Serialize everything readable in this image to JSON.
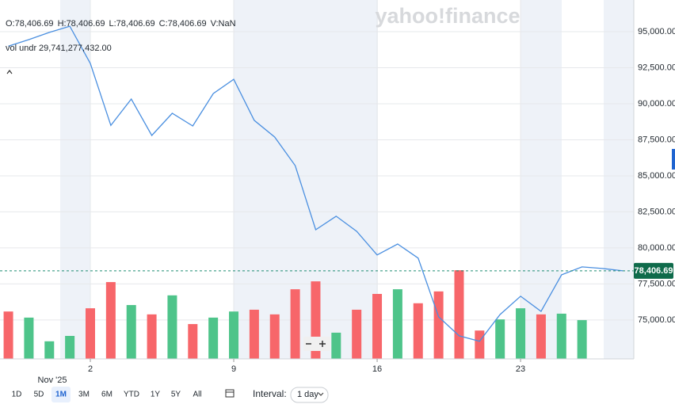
{
  "chart_data": {
    "type": "line",
    "logo": "yahoo!finance",
    "ohlc": [
      "O:78,406.69",
      "H:78,406.69",
      "L:78,406.69",
      "C:78,406.69",
      "V:NaN"
    ],
    "volume_label": "vol undr",
    "volume_value": "29,741,277,432.00",
    "categories": [
      null,
      null,
      null,
      null,
      "2",
      null,
      null,
      null,
      null,
      null,
      null,
      "9",
      null,
      null,
      null,
      null,
      null,
      null,
      "16",
      null,
      null,
      null,
      null,
      null,
      null,
      "23",
      null,
      null,
      null,
      null,
      null
    ],
    "x_period_label": "Nov '25",
    "values": [
      94000,
      94450,
      94950,
      95380,
      92800,
      88500,
      90330,
      87800,
      89340,
      88460,
      90710,
      91700,
      88850,
      87690,
      85710,
      81260,
      82200,
      81150,
      79510,
      80270,
      79290,
      75220,
      73900,
      73520,
      75380,
      76650,
      75600,
      78130,
      78680,
      78570,
      78406.69
    ],
    "color": "#4a8fe0",
    "volume": [
      13.2,
      11.5,
      4.9,
      6.4,
      14.1,
      21.4,
      15,
      12.4,
      17.7,
      9.7,
      11.5,
      13.2,
      13.7,
      12.4,
      19.4,
      21.6,
      7.3,
      13.7,
      18.1,
      19.4,
      15.5,
      18.8,
      24.7,
      7.9,
      11,
      14.1,
      12.4,
      12.6,
      10.8,
      null,
      null
    ],
    "volume_colors": [
      "#f7666a",
      "#4ec48a",
      "#4ec48a",
      "#4ec48a",
      "#f7666a",
      "#f7666a",
      "#4ec48a",
      "#f7666a",
      "#4ec48a",
      "#f7666a",
      "#4ec48a",
      "#4ec48a",
      "#f7666a",
      "#f7666a",
      "#f7666a",
      "#f7666a",
      "#4ec48a",
      "#f7666a",
      "#f7666a",
      "#4ec48a",
      "#f7666a",
      "#f7666a",
      "#f7666a",
      "#f7666a",
      "#4ec48a",
      "#4ec48a",
      "#f7666a",
      "#4ec48a",
      "#4ec48a",
      null,
      null
    ],
    "volume_lim": [
      0,
      100
    ],
    "ylim": [
      72300,
      97200
    ],
    "yticks": [
      {
        "value": 75000,
        "label": "75,000.00"
      },
      {
        "value": 77500,
        "label": "77,500.00"
      },
      {
        "value": 80000,
        "label": "80,000.00"
      },
      {
        "value": 82500,
        "label": "82,500.00"
      },
      {
        "value": 85000,
        "label": "85,000.00"
      },
      {
        "value": 87500,
        "label": "87,500.00"
      },
      {
        "value": 90000,
        "label": "90,000.00"
      },
      {
        "value": 92500,
        "label": "92,500.00"
      },
      {
        "value": 95000,
        "label": "95,000.00"
      }
    ],
    "grid": true,
    "last_price": {
      "value": 78406.69,
      "label": "78,406.69"
    }
  },
  "toolbar": {
    "ranges": [
      "1D",
      "5D",
      "1M",
      "3M",
      "6M",
      "YTD",
      "1Y",
      "5Y",
      "All"
    ],
    "selected_range": 2,
    "interval_label": "Interval:",
    "interval": "1 day"
  }
}
